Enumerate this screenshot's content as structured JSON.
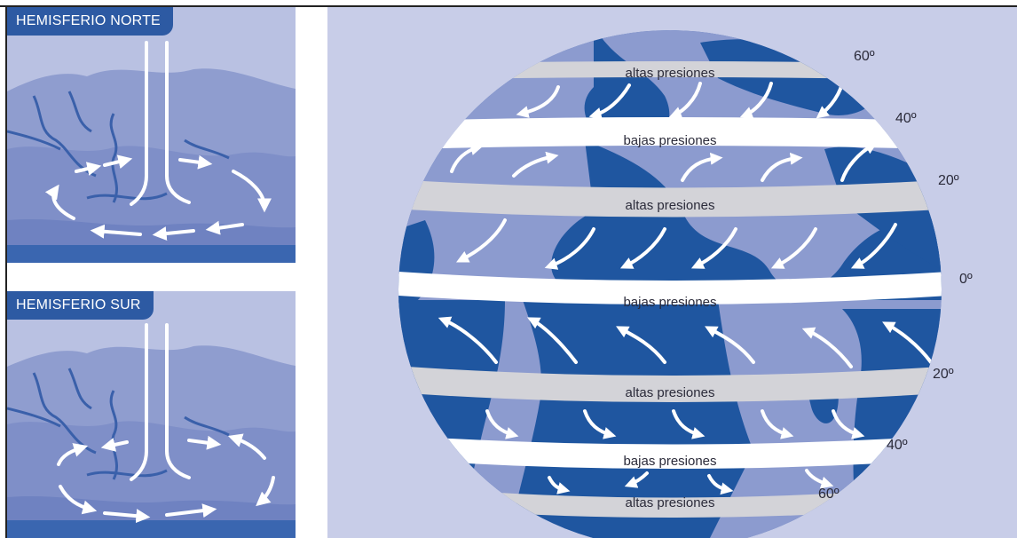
{
  "panels": {
    "north": {
      "title": "HEMISFERIO NORTE"
    },
    "south": {
      "title": "HEMISFERIO SUR"
    }
  },
  "globe": {
    "bands": {
      "high_60n": "altas presiones",
      "low_40n": "bajas presiones",
      "high_20n": "altas presiones",
      "low_0": "bajas presiones",
      "high_20s": "altas presiones",
      "low_40s": "bajas presiones",
      "high_60s": "altas presiones"
    },
    "latitudes": {
      "n60": "60º",
      "n40": "40º",
      "n20": "20º",
      "eq": "0º",
      "s20": "20º",
      "s40": "40º",
      "s60": "60º"
    }
  },
  "colors": {
    "ocean": "#1f56a0",
    "land": "#8c9bcf",
    "background": "#c8cde8",
    "tab": "#2d5aa3",
    "high_pressure_band": "#d3d3d8",
    "low_pressure_band": "#ffffff",
    "arrow": "#ffffff"
  }
}
